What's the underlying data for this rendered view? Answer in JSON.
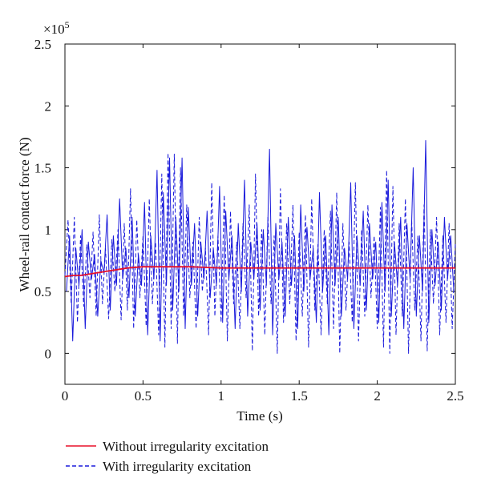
{
  "chart_data": {
    "type": "line",
    "xlabel": "Time (s)",
    "ylabel": "Wheel-rail contact force (N)",
    "y_multiplier_label": "×10",
    "y_multiplier_exponent": "5",
    "xlim": [
      0,
      2.5
    ],
    "ylim": [
      -0.25,
      2.5
    ],
    "xticks": [
      0,
      0.5,
      1,
      1.5,
      2,
      2.5
    ],
    "xtick_labels": [
      "0",
      "0.5",
      "1",
      "1.5",
      "2",
      "2.5"
    ],
    "yticks": [
      0,
      0.5,
      1,
      1.5,
      2,
      2.5
    ],
    "ytick_labels": [
      "0",
      "0.5",
      "1",
      "1.5",
      "2",
      "2.5"
    ],
    "grid": false,
    "legend_position": "bottom-left",
    "series": [
      {
        "name": "Without irregularity excitation",
        "color": "#e8102a",
        "style": "solid",
        "x": [
          0,
          0.05,
          0.1,
          0.15,
          0.2,
          0.25,
          0.3,
          0.35,
          0.4,
          0.5,
          0.6,
          0.7,
          0.8,
          1.0,
          1.25,
          1.5,
          1.75,
          2.0,
          2.25,
          2.5
        ],
        "y": [
          0.62,
          0.63,
          0.63,
          0.64,
          0.65,
          0.66,
          0.67,
          0.68,
          0.69,
          0.7,
          0.7,
          0.7,
          0.7,
          0.69,
          0.69,
          0.69,
          0.69,
          0.69,
          0.69,
          0.69
        ]
      },
      {
        "name": "With irregularity excitation",
        "color": "#1a1adb",
        "style": "dashed",
        "x": [
          0,
          0.02,
          0.04,
          0.06,
          0.08,
          0.1,
          0.12,
          0.14,
          0.16,
          0.18,
          0.2,
          0.22,
          0.24,
          0.26,
          0.28,
          0.3,
          0.32,
          0.34,
          0.36,
          0.38,
          0.4,
          0.42,
          0.44,
          0.46,
          0.48,
          0.5,
          0.52,
          0.54,
          0.56,
          0.58,
          0.6,
          0.62,
          0.64,
          0.66,
          0.68,
          0.7,
          0.72,
          0.74,
          0.76,
          0.78,
          0.8,
          0.82,
          0.84,
          0.86,
          0.88,
          0.9,
          0.92,
          0.94,
          0.96,
          0.98,
          1.0,
          1.02,
          1.04,
          1.06,
          1.08,
          1.1,
          1.12,
          1.14,
          1.16,
          1.18,
          1.2,
          1.22,
          1.24,
          1.26,
          1.28,
          1.3,
          1.32,
          1.34,
          1.36,
          1.38,
          1.4,
          1.42,
          1.44,
          1.46,
          1.48,
          1.5,
          1.52,
          1.54,
          1.56,
          1.58,
          1.6,
          1.62,
          1.64,
          1.66,
          1.68,
          1.7,
          1.72,
          1.74,
          1.76,
          1.78,
          1.8,
          1.82,
          1.84,
          1.86,
          1.88,
          1.9,
          1.92,
          1.94,
          1.96,
          1.98,
          2.0,
          2.02,
          2.04,
          2.06,
          2.08,
          2.1,
          2.12,
          2.14,
          2.16,
          2.18,
          2.2,
          2.22,
          2.24,
          2.26,
          2.28,
          2.3,
          2.32,
          2.34,
          2.36,
          2.38,
          2.4,
          2.42,
          2.44,
          2.46,
          2.48,
          2.5
        ],
        "y": [
          0.63,
          1.08,
          0.4,
          1.1,
          0.25,
          0.95,
          0.38,
          0.88,
          0.45,
          0.98,
          0.3,
          1.12,
          0.4,
          0.85,
          0.28,
          0.92,
          0.5,
          1.0,
          0.27,
          1.05,
          0.35,
          1.33,
          0.2,
          1.08,
          0.45,
          0.95,
          0.22,
          1.25,
          0.4,
          0.9,
          0.15,
          1.45,
          0.05,
          1.62,
          0.2,
          1.61,
          0.08,
          1.5,
          0.3,
          1.2,
          0.45,
          0.9,
          0.2,
          1.1,
          0.5,
          0.85,
          0.15,
          1.38,
          0.3,
          0.95,
          0.25,
          1.28,
          0.1,
          1.15,
          0.4,
          0.9,
          0.2,
          1.05,
          0.45,
          1.2,
          0.02,
          1.45,
          0.3,
          1.0,
          0.15,
          1.1,
          0.4,
          0.95,
          0.0,
          1.33,
          0.25,
          1.05,
          0.4,
          1.2,
          0.1,
          0.98,
          0.3,
          1.12,
          0.05,
          1.25,
          0.35,
          0.88,
          0.15,
          1.0,
          0.4,
          1.15,
          0.2,
          1.3,
          0.0,
          1.05,
          0.35,
          0.9,
          0.25,
          1.38,
          0.1,
          1.0,
          0.3,
          1.2,
          0.45,
          0.95,
          0.2,
          1.18,
          0.05,
          1.48,
          0.0,
          1.35,
          0.15,
          1.05,
          0.3,
          1.25,
          0.0,
          1.08,
          0.35,
          0.95,
          0.1,
          1.2,
          0.02,
          1.0,
          0.4,
          1.1,
          0.15,
          0.95,
          0.25,
          1.05,
          0.2,
          0.9
        ]
      },
      {
        "name": "",
        "color": "#1a1adb",
        "style": "solid",
        "x": [
          0.01,
          0.03,
          0.05,
          0.07,
          0.09,
          0.11,
          0.13,
          0.15,
          0.17,
          0.19,
          0.21,
          0.23,
          0.25,
          0.27,
          0.29,
          0.31,
          0.33,
          0.35,
          0.37,
          0.39,
          0.41,
          0.43,
          0.45,
          0.47,
          0.49,
          0.51,
          0.53,
          0.55,
          0.57,
          0.59,
          0.61,
          0.63,
          0.65,
          0.67,
          0.69,
          0.71,
          0.73,
          0.75,
          0.77,
          0.79,
          0.81,
          0.83,
          0.85,
          0.87,
          0.89,
          0.91,
          0.93,
          0.95,
          0.97,
          0.99,
          1.01,
          1.03,
          1.05,
          1.07,
          1.09,
          1.11,
          1.13,
          1.15,
          1.17,
          1.19,
          1.21,
          1.23,
          1.25,
          1.27,
          1.29,
          1.31,
          1.33,
          1.35,
          1.37,
          1.39,
          1.41,
          1.43,
          1.45,
          1.47,
          1.49,
          1.51,
          1.53,
          1.55,
          1.57,
          1.59,
          1.61,
          1.63,
          1.65,
          1.67,
          1.69,
          1.71,
          1.73,
          1.75,
          1.77,
          1.79,
          1.81,
          1.83,
          1.85,
          1.87,
          1.89,
          1.91,
          1.93,
          1.95,
          1.97,
          1.99,
          2.01,
          2.03,
          2.05,
          2.07,
          2.09,
          2.11,
          2.13,
          2.15,
          2.17,
          2.19,
          2.21,
          2.23,
          2.25,
          2.27,
          2.29,
          2.31,
          2.33,
          2.35,
          2.37,
          2.39,
          2.41,
          2.43,
          2.45,
          2.47,
          2.49
        ],
        "y": [
          0.5,
          0.95,
          0.1,
          0.85,
          0.55,
          1.0,
          0.2,
          0.9,
          0.6,
          0.8,
          0.3,
          0.75,
          0.65,
          1.12,
          0.35,
          0.95,
          0.55,
          1.25,
          0.6,
          0.85,
          0.45,
          1.1,
          0.3,
          0.8,
          0.55,
          1.22,
          0.15,
          0.95,
          0.6,
          1.48,
          0.1,
          1.3,
          0.55,
          1.58,
          0.35,
          1.1,
          0.5,
          1.58,
          0.2,
          1.18,
          0.55,
          1.05,
          0.3,
          0.9,
          0.6,
          1.15,
          0.45,
          0.85,
          0.55,
          1.35,
          0.25,
          1.15,
          0.6,
          0.95,
          0.2,
          1.05,
          0.5,
          1.4,
          0.3,
          0.9,
          0.6,
          1.05,
          0.35,
          1.0,
          0.55,
          1.65,
          0.15,
          1.05,
          0.6,
          0.9,
          0.3,
          1.1,
          0.55,
          0.95,
          0.2,
          1.2,
          0.5,
          1.02,
          0.6,
          0.85,
          0.25,
          1.3,
          0.5,
          0.95,
          0.15,
          1.2,
          0.55,
          1.1,
          0.3,
          0.85,
          0.6,
          1.38,
          0.2,
          0.95,
          0.55,
          1.15,
          0.35,
          1.05,
          0.6,
          0.9,
          0.25,
          1.22,
          0.5,
          1.4,
          0.3,
          0.9,
          0.55,
          1.1,
          0.2,
          1.05,
          0.6,
          1.5,
          0.3,
          0.95,
          0.5,
          1.72,
          0.25,
          1.0,
          0.55,
          0.9,
          0.35,
          1.1,
          0.6,
          0.95,
          0.5
        ]
      }
    ]
  }
}
